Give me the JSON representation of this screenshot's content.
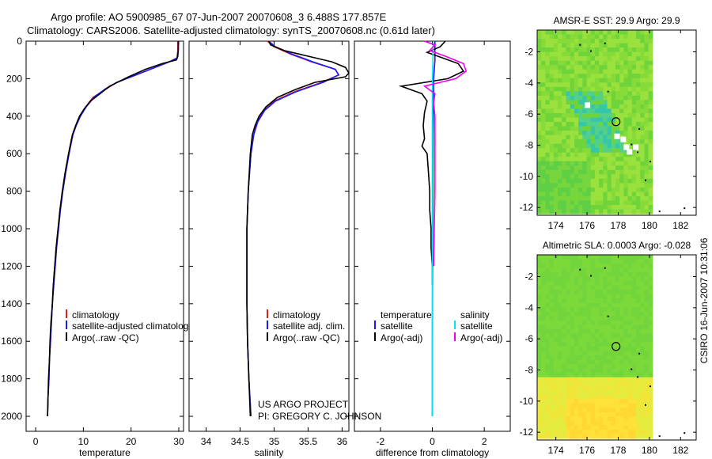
{
  "figure": {
    "title_line1": "Argo profile: AO 5900985_67 07-Jun-2007 20070608_3 6.488S 177.857E",
    "title_line2": "Climatology: CARS2006. Satellite-adjusted climatology: synTS_20070608.nc (0.61d later)",
    "project": "US ARGO PROJECT",
    "pi": "PI: GREGORY C. JOHNSON",
    "stamp": "CSIRO 16-Jun-2007 10:31:06"
  },
  "colors": {
    "climatology": "#e02020",
    "satellite": "#1a1aff",
    "argo": "#000000",
    "sat_salinity": "#00e5ee",
    "argo_salinity": "#ee00ee"
  },
  "chart_data": [
    {
      "type": "line",
      "name": "temperature",
      "xlabel": "temperature",
      "ylabel": "",
      "xlim": [
        -2,
        31
      ],
      "ylim": [
        2080,
        0
      ],
      "y_reversed": true,
      "xticks": [
        0,
        10,
        20,
        30
      ],
      "xtick_labels": [
        "0",
        "10",
        "20",
        "30"
      ],
      "yticks": [
        0,
        200,
        400,
        600,
        800,
        1000,
        1200,
        1400,
        1600,
        1800,
        2000
      ],
      "ytick_labels": [
        "0",
        "200",
        "400",
        "600",
        "800",
        "1000",
        "1200",
        "1400",
        "1600",
        "1800",
        "2000"
      ],
      "legend": [
        "climatology",
        "satellite-adjusted climatology",
        "Argo(..raw -QC)"
      ],
      "series": [
        {
          "name": "climatology",
          "color_key": "climatology",
          "points": [
            [
              29.8,
              0
            ],
            [
              29.8,
              50
            ],
            [
              29.6,
              90
            ],
            [
              28,
              110
            ],
            [
              25,
              140
            ],
            [
              21,
              180
            ],
            [
              17,
              220
            ],
            [
              14.5,
              260
            ],
            [
              12,
              300
            ],
            [
              10.5,
              350
            ],
            [
              9.3,
              400
            ],
            [
              8.4,
              450
            ],
            [
              7.7,
              500
            ],
            [
              6.9,
              600
            ],
            [
              6.2,
              700
            ],
            [
              5.6,
              800
            ],
            [
              5.1,
              900
            ],
            [
              4.7,
              1000
            ],
            [
              4.3,
              1100
            ],
            [
              4.0,
              1200
            ],
            [
              3.7,
              1300
            ],
            [
              3.5,
              1400
            ],
            [
              3.3,
              1500
            ],
            [
              3.1,
              1600
            ],
            [
              2.9,
              1700
            ],
            [
              2.8,
              1800
            ],
            [
              2.6,
              1900
            ],
            [
              2.5,
              2000
            ]
          ]
        },
        {
          "name": "satellite-adjusted climatology",
          "color_key": "satellite",
          "points": [
            [
              29.9,
              0
            ],
            [
              29.9,
              50
            ],
            [
              29.7,
              90
            ],
            [
              28,
              110
            ],
            [
              25,
              140
            ],
            [
              21,
              180
            ],
            [
              17,
              220
            ],
            [
              14.6,
              255
            ],
            [
              12.2,
              300
            ],
            [
              10.6,
              350
            ],
            [
              9.4,
              400
            ],
            [
              8.5,
              450
            ],
            [
              7.8,
              500
            ],
            [
              7.0,
              600
            ],
            [
              6.3,
              700
            ],
            [
              5.7,
              800
            ],
            [
              5.2,
              900
            ],
            [
              4.8,
              1000
            ],
            [
              4.4,
              1100
            ],
            [
              4.1,
              1200
            ],
            [
              3.8,
              1300
            ],
            [
              3.5,
              1400
            ],
            [
              3.3,
              1500
            ],
            [
              3.1,
              1600
            ],
            [
              2.9,
              1700
            ],
            [
              2.8,
              1800
            ],
            [
              2.6,
              1900
            ],
            [
              2.5,
              2000
            ]
          ]
        },
        {
          "name": "Argo(..raw -QC)",
          "color_key": "argo",
          "points": [
            [
              29.9,
              0
            ],
            [
              29.9,
              40
            ],
            [
              29.8,
              80
            ],
            [
              29.5,
              100
            ],
            [
              26.5,
              120
            ],
            [
              23,
              150
            ],
            [
              19.5,
              190
            ],
            [
              15.5,
              240
            ],
            [
              13.5,
              280
            ],
            [
              11.5,
              320
            ],
            [
              10.2,
              360
            ],
            [
              9.2,
              400
            ],
            [
              8.4,
              450
            ],
            [
              7.7,
              500
            ],
            [
              6.9,
              600
            ],
            [
              6.2,
              700
            ],
            [
              5.6,
              800
            ],
            [
              5.1,
              900
            ],
            [
              4.7,
              1000
            ],
            [
              4.3,
              1100
            ],
            [
              4.0,
              1200
            ],
            [
              3.7,
              1300
            ],
            [
              3.5,
              1400
            ],
            [
              3.2,
              1500
            ],
            [
              3.0,
              1600
            ],
            [
              2.9,
              1700
            ],
            [
              2.7,
              1800
            ],
            [
              2.6,
              1900
            ],
            [
              2.5,
              2000
            ]
          ]
        }
      ]
    },
    {
      "type": "line",
      "name": "salinity",
      "xlabel": "salinity",
      "xlim": [
        33.75,
        36.1
      ],
      "ylim": [
        2080,
        0
      ],
      "y_reversed": true,
      "xticks": [
        34,
        34.5,
        35,
        35.5,
        36
      ],
      "xtick_labels": [
        "34",
        "34.5",
        "35",
        "35.5",
        "36"
      ],
      "legend": [
        "climatology",
        "satellite adj. clim.",
        "Argo(..raw -QC)"
      ],
      "series": [
        {
          "name": "climatology",
          "color_key": "climatology",
          "points": [
            [
              34.9,
              0
            ],
            [
              35.0,
              30
            ],
            [
              35.25,
              70
            ],
            [
              35.55,
              110
            ],
            [
              35.9,
              150
            ],
            [
              35.95,
              180
            ],
            [
              35.7,
              220
            ],
            [
              35.3,
              270
            ],
            [
              35.0,
              320
            ],
            [
              34.85,
              370
            ],
            [
              34.75,
              430
            ],
            [
              34.7,
              500
            ],
            [
              34.66,
              600
            ],
            [
              34.62,
              800
            ],
            [
              34.6,
              1000
            ],
            [
              34.6,
              1200
            ],
            [
              34.6,
              1400
            ],
            [
              34.61,
              1600
            ],
            [
              34.63,
              1800
            ],
            [
              34.66,
              2000
            ]
          ]
        },
        {
          "name": "satellite adj. clim.",
          "color_key": "satellite",
          "points": [
            [
              34.92,
              0
            ],
            [
              35.02,
              30
            ],
            [
              35.27,
              70
            ],
            [
              35.57,
              110
            ],
            [
              35.9,
              150
            ],
            [
              35.95,
              180
            ],
            [
              35.72,
              220
            ],
            [
              35.32,
              270
            ],
            [
              35.02,
              320
            ],
            [
              34.86,
              370
            ],
            [
              34.76,
              430
            ],
            [
              34.7,
              500
            ],
            [
              34.66,
              600
            ],
            [
              34.62,
              800
            ],
            [
              34.6,
              1000
            ],
            [
              34.6,
              1200
            ],
            [
              34.6,
              1400
            ],
            [
              34.61,
              1600
            ],
            [
              34.63,
              1800
            ],
            [
              34.66,
              2000
            ]
          ]
        },
        {
          "name": "Argo(..raw -QC)",
          "color_key": "argo",
          "points": [
            [
              34.92,
              0
            ],
            [
              34.95,
              20
            ],
            [
              35.15,
              50
            ],
            [
              35.5,
              80
            ],
            [
              35.85,
              110
            ],
            [
              36.05,
              140
            ],
            [
              36.1,
              170
            ],
            [
              36.05,
              190
            ],
            [
              35.6,
              220
            ],
            [
              35.3,
              260
            ],
            [
              35.05,
              300
            ],
            [
              34.88,
              350
            ],
            [
              34.78,
              400
            ],
            [
              34.72,
              450
            ],
            [
              34.68,
              500
            ],
            [
              34.65,
              600
            ],
            [
              34.62,
              800
            ],
            [
              34.6,
              1000
            ],
            [
              34.6,
              1200
            ],
            [
              34.6,
              1400
            ],
            [
              34.61,
              1600
            ],
            [
              34.63,
              1800
            ],
            [
              34.65,
              2000
            ]
          ]
        }
      ]
    },
    {
      "type": "line",
      "name": "difference",
      "xlabel": "difference from climatology",
      "xlim": [
        -3,
        3
      ],
      "ylim": [
        2080,
        0
      ],
      "y_reversed": true,
      "xticks": [
        -2,
        0,
        2
      ],
      "xtick_labels": [
        "-2",
        "0",
        "2"
      ],
      "legend_headers": [
        "temperature",
        "salinity"
      ],
      "legend": [
        "satellite",
        "Argo(-adj)",
        "satellite",
        "Argo(-adj)"
      ],
      "series": [
        {
          "name": "temperature satellite",
          "color_key": "satellite",
          "points": [
            [
              0.1,
              0
            ],
            [
              0.1,
              100
            ],
            [
              0.05,
              200
            ],
            [
              0.05,
              300
            ],
            [
              0.03,
              500
            ],
            [
              0.02,
              800
            ],
            [
              0.01,
              1200
            ],
            [
              0.0,
              1600
            ],
            [
              0.0,
              2000
            ]
          ]
        },
        {
          "name": "temperature Argo(-adj)",
          "color_key": "argo",
          "points": [
            [
              0.5,
              0
            ],
            [
              0.3,
              30
            ],
            [
              -0.2,
              60
            ],
            [
              0.4,
              90
            ],
            [
              1.0,
              120
            ],
            [
              1.2,
              160
            ],
            [
              0.6,
              200
            ],
            [
              -1.2,
              240
            ],
            [
              -0.4,
              280
            ],
            [
              -0.2,
              320
            ],
            [
              -0.3,
              380
            ],
            [
              -0.35,
              450
            ],
            [
              -0.3,
              520
            ],
            [
              -0.4,
              560
            ],
            [
              -0.2,
              600
            ],
            [
              -0.15,
              700
            ],
            [
              -0.1,
              800
            ],
            [
              -0.1,
              900
            ],
            [
              -0.05,
              1000
            ],
            [
              -0.05,
              1100
            ],
            [
              0.0,
              1200
            ],
            [
              0.0,
              1300
            ]
          ]
        },
        {
          "name": "salinity satellite",
          "color_key": "sat_salinity",
          "points": [
            [
              0.03,
              0
            ],
            [
              0.02,
              100
            ],
            [
              0.01,
              200
            ],
            [
              0.0,
              300
            ],
            [
              0.0,
              500
            ],
            [
              0.0,
              800
            ],
            [
              0.0,
              1200
            ],
            [
              0.0,
              1600
            ],
            [
              0.0,
              2000
            ]
          ]
        },
        {
          "name": "salinity Argo(-adj)",
          "color_key": "argo_salinity",
          "points": [
            [
              -0.3,
              0
            ],
            [
              0.1,
              20
            ],
            [
              -0.1,
              50
            ],
            [
              0.5,
              80
            ],
            [
              1.2,
              120
            ],
            [
              1.3,
              160
            ],
            [
              0.9,
              200
            ],
            [
              -0.3,
              240
            ],
            [
              0.1,
              280
            ],
            [
              0.05,
              330
            ],
            [
              0.1,
              400
            ],
            [
              0.1,
              800
            ],
            [
              0.05,
              1200
            ]
          ]
        }
      ]
    },
    {
      "type": "heatmap",
      "name": "sst_map",
      "title": "AMSR-E SST: 29.9 Argo: 29.9",
      "xlim": [
        172.8,
        183
      ],
      "ylim": [
        -12.5,
        -0.6
      ],
      "xticks": [
        174,
        176,
        178,
        180,
        182
      ],
      "xtick_labels": [
        "174",
        "176",
        "178",
        "180",
        "182"
      ],
      "yticks": [
        -2,
        -4,
        -6,
        -8,
        -10,
        -12
      ],
      "ytick_labels": [
        "-2",
        "-4",
        "-6",
        "-8",
        "-10",
        "-12"
      ],
      "profile_location": [
        177.857,
        -6.488
      ]
    },
    {
      "type": "heatmap",
      "name": "sla_map",
      "title": "Altimetric SLA: 0.0003 Argo: -0.028",
      "xlim": [
        172.8,
        183
      ],
      "ylim": [
        -12.5,
        -0.6
      ],
      "xticks": [
        174,
        176,
        178,
        180,
        182
      ],
      "xtick_labels": [
        "174",
        "176",
        "178",
        "180",
        "182"
      ],
      "yticks": [
        -2,
        -4,
        -6,
        -8,
        -10,
        -12
      ],
      "ytick_labels": [
        "-2",
        "-4",
        "-6",
        "-8",
        "-10",
        "-12"
      ],
      "profile_location": [
        177.857,
        -6.488
      ]
    }
  ]
}
